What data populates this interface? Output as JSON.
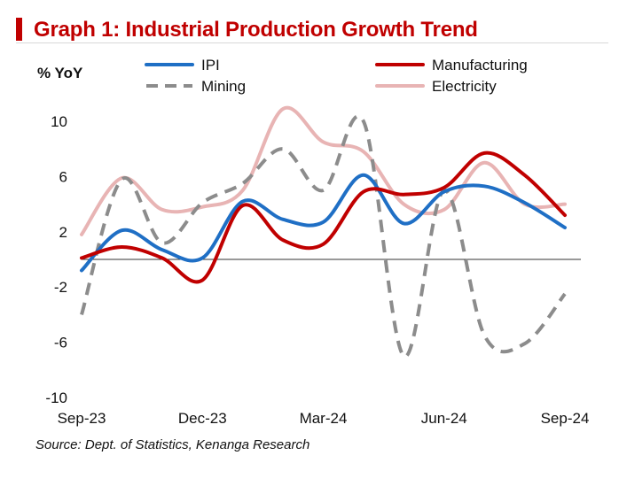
{
  "header": {
    "title": "Graph 1: Industrial Production Growth Trend"
  },
  "source": "Source:  Dept. of Statistics, Kenanga Research",
  "chart_data": {
    "type": "line",
    "ylabel": "% YoY",
    "ylim": [
      -10,
      10
    ],
    "yticks": [
      10,
      6,
      2,
      -2,
      -6,
      -10
    ],
    "xticks": [
      "Sep-23",
      "Dec-23",
      "Mar-24",
      "Jun-24",
      "Sep-24"
    ],
    "legend_position": "top",
    "x": [
      "Sep-23",
      "Oct-23",
      "Nov-23",
      "Dec-23",
      "Jan-24",
      "Feb-24",
      "Mar-24",
      "Apr-24",
      "May-24",
      "Jun-24",
      "Jul-24",
      "Aug-24",
      "Sep-24"
    ],
    "series": [
      {
        "name": "IPI",
        "color": "#1f6fc5",
        "dash": "solid",
        "values": [
          -0.8,
          2.1,
          0.7,
          0.1,
          4.2,
          2.9,
          2.7,
          6.1,
          2.6,
          4.9,
          5.3,
          4.1,
          2.3
        ]
      },
      {
        "name": "Mining",
        "color": "#8c8c8c",
        "dash": "dashed",
        "values": [
          -4.0,
          5.8,
          1.2,
          4.1,
          5.5,
          8.0,
          5.0,
          10.0,
          -7.0,
          5.0,
          -5.5,
          -6.1,
          -2.5
        ]
      },
      {
        "name": "Manufacturing",
        "color": "#c00000",
        "dash": "solid",
        "values": [
          0.1,
          0.9,
          0.1,
          -1.5,
          3.9,
          1.4,
          1.1,
          4.9,
          4.7,
          5.2,
          7.7,
          6.1,
          3.2
        ]
      },
      {
        "name": "Electricity",
        "color": "#e8b4b4",
        "dash": "solid",
        "values": [
          1.8,
          5.9,
          3.6,
          3.8,
          5.0,
          10.9,
          8.5,
          7.8,
          4.0,
          3.6,
          7.0,
          4.0,
          4.0
        ]
      }
    ]
  }
}
